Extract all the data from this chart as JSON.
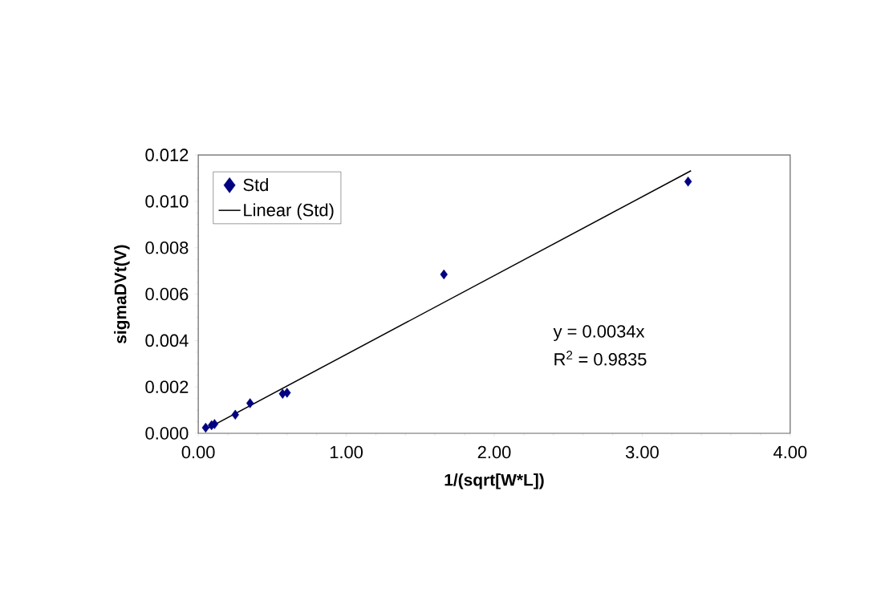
{
  "chart_data": {
    "type": "scatter",
    "xlabel": "1/(sqrt[W*L])",
    "ylabel": "sigmaDVt(V)",
    "xlim": [
      0,
      4
    ],
    "ylim": [
      0,
      0.012
    ],
    "xticks": [
      {
        "value": 0,
        "label": "0.00"
      },
      {
        "value": 1,
        "label": "1.00"
      },
      {
        "value": 2,
        "label": "2.00"
      },
      {
        "value": 3,
        "label": "3.00"
      },
      {
        "value": 4,
        "label": "4.00"
      }
    ],
    "yticks": [
      {
        "value": 0,
        "label": "0.000"
      },
      {
        "value": 0.002,
        "label": "0.002"
      },
      {
        "value": 0.004,
        "label": "0.004"
      },
      {
        "value": 0.006,
        "label": "0.006"
      },
      {
        "value": 0.008,
        "label": "0.008"
      },
      {
        "value": 0.01,
        "label": "0.010"
      },
      {
        "value": 0.012,
        "label": "0.012"
      }
    ],
    "grid": false,
    "legend": "top left",
    "marker": "diamond",
    "annotations": [
      "y = 0.0034x",
      "R$^{2}$ = 0.9835"
    ],
    "series": [
      {
        "name": "Std",
        "color": "#000080",
        "x": [
          0.05,
          0.09,
          0.11,
          0.25,
          0.35,
          0.57,
          0.6,
          1.66,
          3.31
        ],
        "values": [
          0.00024,
          0.00035,
          0.0004,
          0.0008,
          0.0013,
          0.0017,
          0.00175,
          0.00685,
          0.01085
        ]
      },
      {
        "name": "Linear (Std)",
        "type": "line",
        "color": "#000000",
        "marker": "none",
        "x": [
          0.05,
          3.33
        ],
        "values": [
          0.00017,
          0.01132
        ]
      }
    ]
  }
}
